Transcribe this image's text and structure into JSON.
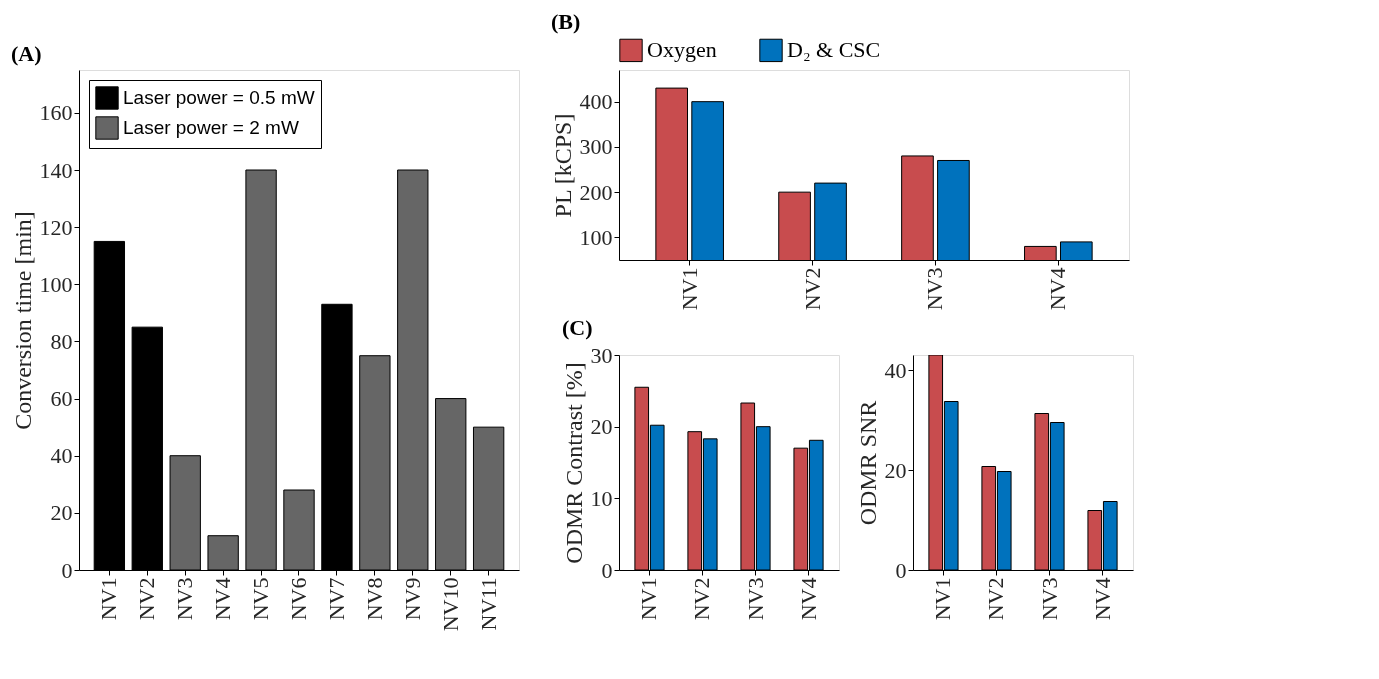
{
  "chart_data": [
    {
      "type": "bar",
      "annotations": [
        "(A)"
      ],
      "ylabel": "Conversion time [min]",
      "categories": [
        "NV1",
        "NV2",
        "NV3",
        "NV4",
        "NV5",
        "NV6",
        "NV7",
        "NV8",
        "NV9",
        "NV10",
        "NV11"
      ],
      "series": [
        {
          "name": "Laser power = 0.5 mW",
          "color": "#000000",
          "values": [
            115,
            85,
            null,
            null,
            null,
            null,
            93,
            null,
            null,
            null,
            null
          ]
        },
        {
          "name": "Laser power = 2 mW",
          "color": "#666666",
          "values": [
            null,
            null,
            40,
            12,
            140,
            28,
            null,
            75,
            140,
            60,
            50
          ]
        }
      ],
      "ylim": [
        0,
        175
      ],
      "yticks": [
        0,
        20,
        40,
        60,
        80,
        100,
        120,
        140,
        160
      ],
      "legend": "top left",
      "grid": false
    },
    {
      "type": "bar",
      "annotations": [
        "(B)"
      ],
      "ylabel": "PL [kCPS]",
      "categories": [
        "NV1",
        "NV2",
        "NV3",
        "NV4"
      ],
      "series": [
        {
          "name": "Oxygen",
          "color": "#c84c4e",
          "values": [
            430,
            200,
            280,
            80
          ]
        },
        {
          "name": "D₂ & CSC",
          "color": "#0072bd",
          "values": [
            400,
            220,
            270,
            90
          ]
        }
      ],
      "ylim": [
        50,
        470
      ],
      "yticks": [
        100,
        200,
        300,
        400
      ],
      "legend": "top",
      "grid": false
    },
    {
      "type": "bar",
      "annotations": [
        "(C)"
      ],
      "ylabel": "ODMR Contrast [%]",
      "categories": [
        "NV1",
        "NV2",
        "NV3",
        "NV4"
      ],
      "series": [
        {
          "color": "#c84c4e",
          "values": [
            25.5,
            19.3,
            23.3,
            17.0
          ]
        },
        {
          "color": "#0072bd",
          "values": [
            20.2,
            18.3,
            20.0,
            18.1
          ]
        }
      ],
      "ylim": [
        0,
        30
      ],
      "yticks": [
        0,
        10,
        20,
        30
      ],
      "grid": false
    },
    {
      "type": "bar",
      "ylabel": "ODMR SNR",
      "categories": [
        "NV1",
        "NV2",
        "NV3",
        "NV4"
      ],
      "series": [
        {
          "color": "#c84c4e",
          "values": [
            43,
            20.7,
            31.3,
            11.9
          ]
        },
        {
          "color": "#0072bd",
          "values": [
            33.7,
            19.7,
            29.5,
            13.7
          ]
        }
      ],
      "ylim": [
        0,
        43
      ],
      "yticks": [
        0,
        20,
        40
      ],
      "grid": false
    }
  ]
}
